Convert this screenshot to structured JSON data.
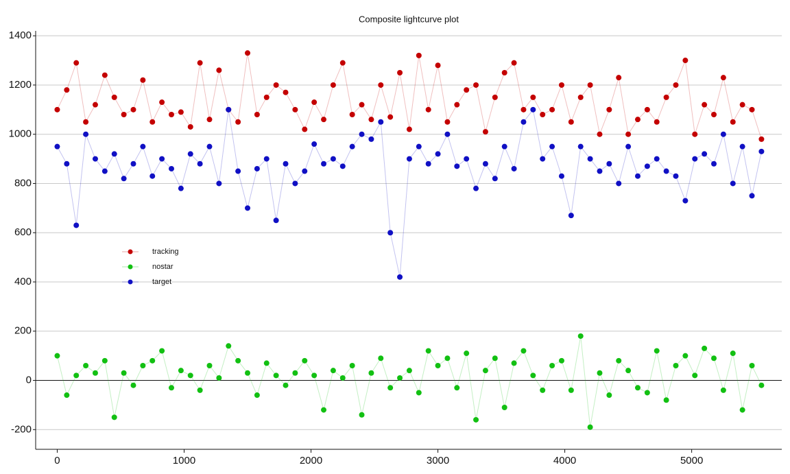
{
  "chart_data": {
    "type": "scatter",
    "title": "Composite lightcurve plot",
    "x": [
      0,
      75,
      150,
      225,
      300,
      375,
      450,
      525,
      600,
      675,
      750,
      825,
      900,
      975,
      1050,
      1125,
      1200,
      1275,
      1350,
      1425,
      1500,
      1575,
      1650,
      1725,
      1800,
      1875,
      1950,
      2025,
      2100,
      2175,
      2250,
      2325,
      2400,
      2475,
      2550,
      2625,
      2700,
      2775,
      2850,
      2925,
      3000,
      3075,
      3150,
      3225,
      3300,
      3375,
      3450,
      3525,
      3600,
      3675,
      3750,
      3825,
      3900,
      3975,
      4050,
      4125,
      4200,
      4275,
      4350,
      4425,
      4500,
      4575,
      4650,
      4725,
      4800,
      4875,
      4950,
      5025,
      5100,
      5175,
      5250,
      5325,
      5400,
      5475,
      5550
    ],
    "series": [
      {
        "name": "tracking",
        "color": "#c40000",
        "values": [
          1100,
          1180,
          1290,
          1050,
          1120,
          1240,
          1150,
          1080,
          1100,
          1220,
          1050,
          1130,
          1080,
          1090,
          1030,
          1290,
          1060,
          1260,
          1100,
          1050,
          1330,
          1080,
          1150,
          1200,
          1170,
          1100,
          1020,
          1130,
          1060,
          1200,
          1290,
          1080,
          1120,
          1060,
          1200,
          1070,
          1250,
          1020,
          1320,
          1100,
          1280,
          1050,
          1120,
          1180,
          1200,
          1010,
          1150,
          1250,
          1290,
          1100,
          1150,
          1080,
          1100,
          1200,
          1050,
          1150,
          1200,
          1000,
          1100,
          1230,
          1000,
          1060,
          1100,
          1050,
          1150,
          1200,
          1300,
          1000,
          1120,
          1080,
          1230,
          1050,
          1120,
          1100,
          980
        ]
      },
      {
        "name": "nostar",
        "color": "#12c012",
        "values": [
          100,
          -60,
          20,
          60,
          30,
          80,
          -150,
          30,
          -20,
          60,
          80,
          120,
          -30,
          40,
          20,
          -40,
          60,
          10,
          140,
          80,
          30,
          -60,
          70,
          20,
          -20,
          30,
          80,
          20,
          -120,
          40,
          10,
          60,
          -140,
          30,
          90,
          -30,
          10,
          40,
          -50,
          120,
          60,
          90,
          -30,
          110,
          -160,
          40,
          90,
          -110,
          70,
          120,
          20,
          -40,
          60,
          80,
          -40,
          180,
          -190,
          30,
          -60,
          80,
          40,
          -30,
          -50,
          120,
          -80,
          60,
          100,
          20,
          130,
          90,
          -40,
          110,
          -120,
          60,
          -20
        ]
      },
      {
        "name": "target",
        "color": "#1010c4",
        "values": [
          950,
          880,
          630,
          1000,
          900,
          850,
          920,
          820,
          880,
          950,
          830,
          900,
          860,
          780,
          920,
          880,
          950,
          800,
          1100,
          850,
          700,
          860,
          900,
          650,
          880,
          800,
          850,
          960,
          880,
          900,
          870,
          950,
          1000,
          980,
          1050,
          600,
          420,
          900,
          950,
          880,
          920,
          1000,
          870,
          900,
          780,
          880,
          820,
          950,
          860,
          1050,
          1100,
          900,
          950,
          830,
          670,
          950,
          900,
          850,
          880,
          800,
          950,
          830,
          870,
          900,
          850,
          830,
          730,
          900,
          920,
          880,
          1000,
          800,
          950,
          750,
          930
        ]
      }
    ],
    "xlim": [
      -170,
      5710
    ],
    "ylim": [
      -280,
      1420
    ],
    "xticks": [
      0,
      1000,
      2000,
      3000,
      4000,
      5000
    ],
    "yticks": [
      -200,
      0,
      200,
      400,
      600,
      800,
      1000,
      1200,
      1400
    ],
    "grid": true,
    "legend": "upper-left"
  }
}
